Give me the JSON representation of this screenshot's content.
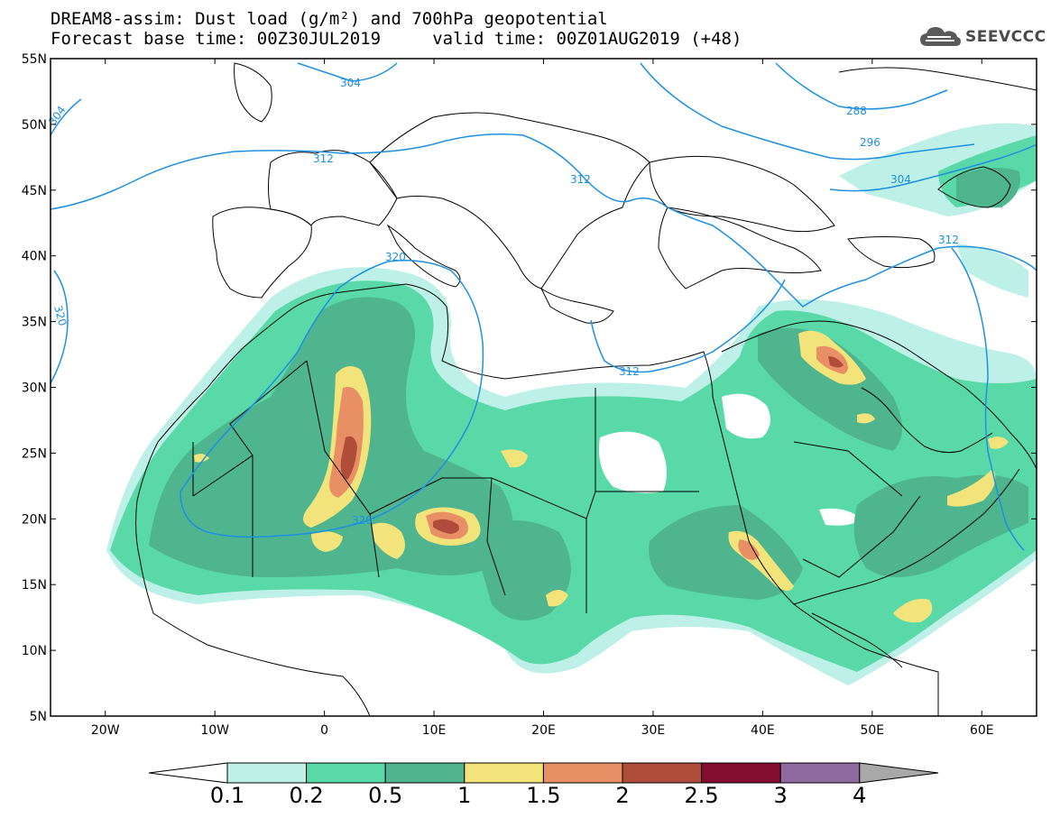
{
  "title_line1": "DREAM8-assim: Dust load (g/m²) and 700hPa geopotential",
  "title_line2": "Forecast base time: 00Z30JUL2019     valid time: 00Z01AUG2019 (+48)",
  "logo_text": "SEEVCCC",
  "map": {
    "lon_range": [
      -25,
      65
    ],
    "lat_range": [
      5,
      55
    ],
    "lat_ticks": [
      "55N",
      "50N",
      "45N",
      "40N",
      "35N",
      "30N",
      "25N",
      "20N",
      "15N",
      "10N",
      "5N"
    ],
    "lon_ticks": [
      "20W",
      "10W",
      "0",
      "10E",
      "20E",
      "30E",
      "40E",
      "50E",
      "60E"
    ],
    "contour_labels": [
      "304",
      "304",
      "312",
      "312",
      "312",
      "312",
      "320",
      "320",
      "320",
      "288",
      "296",
      "304",
      "312"
    ],
    "contour_color": "#1e90e0"
  },
  "colorbar": {
    "labels": [
      "0.1",
      "0.2",
      "0.5",
      "1",
      "1.5",
      "2",
      "2.5",
      "3",
      "4"
    ],
    "colors": [
      "#bdf0e6",
      "#5ad9a8",
      "#4fb58f",
      "#f2e47a",
      "#e88f66",
      "#b04d3a",
      "#840e2f",
      "#8f6aa0",
      "#a8a8a8"
    ]
  }
}
